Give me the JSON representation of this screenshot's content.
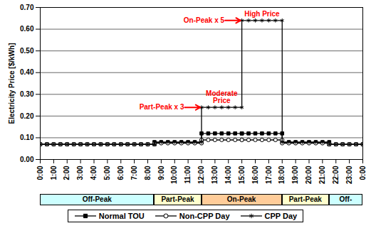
{
  "chart_data": {
    "type": "line",
    "ylabel": "Electricity Price [$/kWh]",
    "x": [
      0,
      0.5,
      1,
      1.5,
      2,
      2.5,
      3,
      3.5,
      4,
      4.5,
      5,
      5.5,
      6,
      6.5,
      7,
      7.5,
      8,
      8.5,
      8.5,
      9,
      9.5,
      10,
      10.5,
      11,
      11.5,
      12,
      12,
      12.5,
      13,
      13.5,
      14,
      14.5,
      15,
      15,
      15.5,
      16,
      16.5,
      17,
      17.5,
      18,
      18,
      18.5,
      19,
      19.5,
      20,
      20.5,
      21,
      21.5,
      21.5,
      22,
      22.5,
      23,
      23.5,
      24
    ],
    "series": [
      {
        "name": "Normal TOU",
        "color": "#000000",
        "marker": "square",
        "values": [
          0.07,
          0.07,
          0.07,
          0.07,
          0.07,
          0.07,
          0.07,
          0.07,
          0.07,
          0.07,
          0.07,
          0.07,
          0.07,
          0.07,
          0.07,
          0.07,
          0.07,
          0.07,
          0.08,
          0.08,
          0.08,
          0.08,
          0.08,
          0.08,
          0.08,
          0.08,
          0.12,
          0.12,
          0.12,
          0.12,
          0.12,
          0.12,
          0.12,
          0.12,
          0.12,
          0.12,
          0.12,
          0.12,
          0.12,
          0.12,
          0.08,
          0.08,
          0.08,
          0.08,
          0.08,
          0.08,
          0.08,
          0.08,
          0.07,
          0.07,
          0.07,
          0.07,
          0.07,
          0.07
        ]
      },
      {
        "name": "Non-CPP Day",
        "color": "#000000",
        "marker": "circle",
        "values": [
          0.07,
          0.07,
          0.07,
          0.07,
          0.07,
          0.07,
          0.07,
          0.07,
          0.07,
          0.07,
          0.07,
          0.07,
          0.07,
          0.07,
          0.07,
          0.07,
          0.07,
          0.07,
          0.075,
          0.075,
          0.075,
          0.075,
          0.075,
          0.075,
          0.075,
          0.075,
          0.09,
          0.09,
          0.09,
          0.09,
          0.09,
          0.09,
          0.09,
          0.09,
          0.09,
          0.09,
          0.09,
          0.09,
          0.09,
          0.09,
          0.075,
          0.075,
          0.075,
          0.075,
          0.075,
          0.075,
          0.075,
          0.075,
          0.07,
          0.07,
          0.07,
          0.07,
          0.07,
          0.07
        ]
      },
      {
        "name": "CPP Day",
        "color": "#000000",
        "marker": "asterisk",
        "values": [
          0.07,
          0.07,
          0.07,
          0.07,
          0.07,
          0.07,
          0.07,
          0.07,
          0.07,
          0.07,
          0.07,
          0.07,
          0.07,
          0.07,
          0.07,
          0.07,
          0.07,
          0.07,
          0.08,
          0.08,
          0.08,
          0.08,
          0.08,
          0.08,
          0.08,
          0.08,
          0.24,
          0.24,
          0.24,
          0.24,
          0.24,
          0.24,
          0.24,
          0.64,
          0.64,
          0.64,
          0.64,
          0.64,
          0.64,
          0.64,
          0.08,
          0.08,
          0.08,
          0.08,
          0.08,
          0.08,
          0.08,
          0.08,
          0.07,
          0.07,
          0.07,
          0.07,
          0.07,
          0.07
        ]
      }
    ],
    "xlim": [
      0,
      24
    ],
    "xticks": [
      {
        "value": 0,
        "label": "0:00"
      },
      {
        "value": 1,
        "label": "1:00"
      },
      {
        "value": 2,
        "label": "2:00"
      },
      {
        "value": 3,
        "label": "3:00"
      },
      {
        "value": 4,
        "label": "4:00"
      },
      {
        "value": 5,
        "label": "5:00"
      },
      {
        "value": 6,
        "label": "6:00"
      },
      {
        "value": 7,
        "label": "7:00"
      },
      {
        "value": 8,
        "label": "8:00"
      },
      {
        "value": 9,
        "label": "9:00"
      },
      {
        "value": 10,
        "label": "10:00"
      },
      {
        "value": 11,
        "label": "11:00"
      },
      {
        "value": 12,
        "label": "12:00"
      },
      {
        "value": 13,
        "label": "13:00"
      },
      {
        "value": 14,
        "label": "14:00"
      },
      {
        "value": 15,
        "label": "15:00"
      },
      {
        "value": 16,
        "label": "16:00"
      },
      {
        "value": 17,
        "label": "17:00"
      },
      {
        "value": 18,
        "label": "18:00"
      },
      {
        "value": 19,
        "label": "19:00"
      },
      {
        "value": 20,
        "label": "20:00"
      },
      {
        "value": 21,
        "label": "21:00"
      },
      {
        "value": 22,
        "label": "22:00"
      },
      {
        "value": 23,
        "label": "23:00"
      },
      {
        "value": 24,
        "label": "0:00"
      }
    ],
    "ylim": [
      0,
      0.7
    ],
    "yticks": [
      {
        "value": 0,
        "label": "0.00"
      },
      {
        "value": 0.1,
        "label": "0.10"
      },
      {
        "value": 0.2,
        "label": "0.20"
      },
      {
        "value": 0.3,
        "label": "0.30"
      },
      {
        "value": 0.4,
        "label": "0.40"
      },
      {
        "value": 0.5,
        "label": "0.50"
      },
      {
        "value": 0.6,
        "label": "0.60"
      },
      {
        "value": 0.7,
        "label": "0.70"
      }
    ],
    "grid": true,
    "legend": "bottom",
    "arrow_annotations": [
      {
        "text": "On-Peak x 5",
        "x": 15,
        "y": 0.64,
        "color": "#ff0000"
      },
      {
        "text": "Part-Peak x 3",
        "x": 12,
        "y": 0.24,
        "color": "#ff0000"
      }
    ],
    "annotations": [
      {
        "text": "High Price",
        "x": 16.5,
        "y": 0.64,
        "color": "#ff0000"
      },
      {
        "text": "Moderate\nPrice",
        "x": 13.5,
        "y": 0.24,
        "color": "#ff0000"
      }
    ],
    "periods": [
      {
        "label": "Off-Peak",
        "start": 0,
        "end": 8.5,
        "color": "#ccffff"
      },
      {
        "label": "Part-Peak",
        "start": 8.5,
        "end": 12,
        "color": "#ffffcc"
      },
      {
        "label": "On-Peak",
        "start": 12,
        "end": 18,
        "color": "#ffcc99"
      },
      {
        "label": "Part-Peak",
        "start": 18,
        "end": 21.5,
        "color": "#ffffcc"
      },
      {
        "label": "Off-",
        "start": 21.5,
        "end": 24,
        "color": "#ccffff"
      }
    ]
  }
}
